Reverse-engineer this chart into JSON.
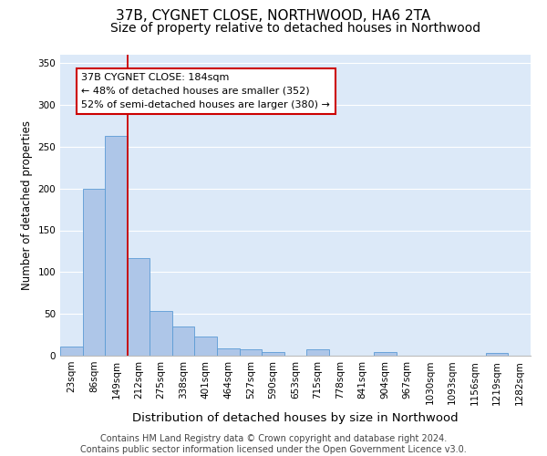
{
  "title1": "37B, CYGNET CLOSE, NORTHWOOD, HA6 2TA",
  "title2": "Size of property relative to detached houses in Northwood",
  "xlabel": "Distribution of detached houses by size in Northwood",
  "ylabel": "Number of detached properties",
  "categories": [
    "23sqm",
    "86sqm",
    "149sqm",
    "212sqm",
    "275sqm",
    "338sqm",
    "401sqm",
    "464sqm",
    "527sqm",
    "590sqm",
    "653sqm",
    "715sqm",
    "778sqm",
    "841sqm",
    "904sqm",
    "967sqm",
    "1030sqm",
    "1093sqm",
    "1156sqm",
    "1219sqm",
    "1282sqm"
  ],
  "values": [
    11,
    200,
    263,
    117,
    53,
    35,
    23,
    9,
    8,
    4,
    0,
    8,
    0,
    0,
    4,
    0,
    0,
    0,
    0,
    3,
    0
  ],
  "bar_color": "#aec6e8",
  "bar_edge_color": "#5b9bd5",
  "vline_x": 2.5,
  "vline_color": "#cc0000",
  "annotation_box_text": "37B CYGNET CLOSE: 184sqm\n← 48% of detached houses are smaller (352)\n52% of semi-detached houses are larger (380) →",
  "ylim": [
    0,
    360
  ],
  "yticks": [
    0,
    50,
    100,
    150,
    200,
    250,
    300,
    350
  ],
  "fig_bg_color": "#ffffff",
  "plot_bg_color": "#dce9f8",
  "grid_color": "#ffffff",
  "footer_text": "Contains HM Land Registry data © Crown copyright and database right 2024.\nContains public sector information licensed under the Open Government Licence v3.0.",
  "title1_fontsize": 11,
  "title2_fontsize": 10,
  "xlabel_fontsize": 9.5,
  "ylabel_fontsize": 8.5,
  "tick_fontsize": 7.5,
  "footer_fontsize": 7,
  "annot_fontsize": 8
}
